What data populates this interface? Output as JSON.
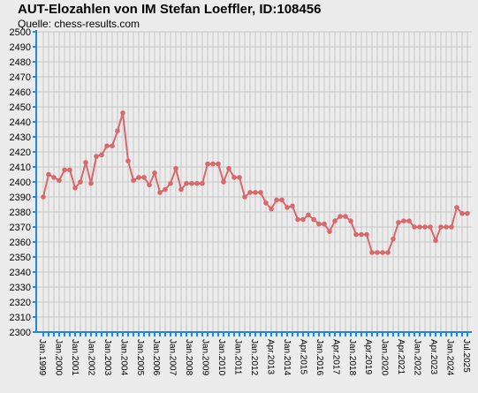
{
  "chart_data": {
    "type": "line",
    "title": "AUT-Elozahlen von IM Stefan Loeffler, ID:108456",
    "subtitle": "Quelle: chess-results.com",
    "xlabel": "",
    "ylabel": "",
    "ylim": [
      2300,
      2500
    ],
    "yticks": [
      2300,
      2310,
      2320,
      2330,
      2340,
      2350,
      2360,
      2370,
      2380,
      2390,
      2400,
      2410,
      2420,
      2430,
      2440,
      2450,
      2460,
      2470,
      2480,
      2490,
      2500
    ],
    "grid": true,
    "legend": "none",
    "colors": {
      "line": "#d9686b",
      "marker": "#d9686b",
      "axis": "#1e88e5",
      "grid": "#c8c8c8",
      "background": "#ececec"
    },
    "x_tick_labels": [
      "Jan.1999",
      "Jan.2000",
      "Jan.2001",
      "Jan.2002",
      "Jan.2003",
      "Jan.2004",
      "Jan.2005",
      "Jan.2006",
      "Jan.2007",
      "Jan.2008",
      "Jan.2009",
      "Jan.2010",
      "Jan.2011",
      "Jan.2012",
      "Apr.2013",
      "Jan.2014",
      "Apr.2015",
      "Jan.2016",
      "Apr.2017",
      "Jan.2018",
      "Apr.2019",
      "Jan.2020",
      "Apr.2021",
      "Jan.2022",
      "Apr.2023",
      "Jan.2024",
      "Jul.2025"
    ],
    "series": [
      {
        "values": [
          2390,
          2405,
          2403,
          2401,
          2408,
          2408,
          2396,
          2400,
          2413,
          2399,
          2417,
          2418,
          2424,
          2424,
          2434,
          2446,
          2414,
          2401,
          2403,
          2403,
          2398,
          2406,
          2393,
          2395,
          2399,
          2409,
          2395,
          2399,
          2399,
          2399,
          2399,
          2412,
          2412,
          2412,
          2400,
          2409,
          2403,
          2403,
          2390,
          2393,
          2393,
          2393,
          2386,
          2382,
          2388,
          2388,
          2383,
          2384,
          2375,
          2375,
          2378,
          2375,
          2372,
          2372,
          2367,
          2374,
          2377,
          2377,
          2374,
          2365,
          2365,
          2365,
          2353,
          2353,
          2353,
          2353,
          2362,
          2373,
          2374,
          2374,
          2370,
          2370,
          2370,
          2370,
          2361,
          2370,
          2370,
          2370,
          2383,
          2379,
          2379
        ]
      }
    ]
  }
}
